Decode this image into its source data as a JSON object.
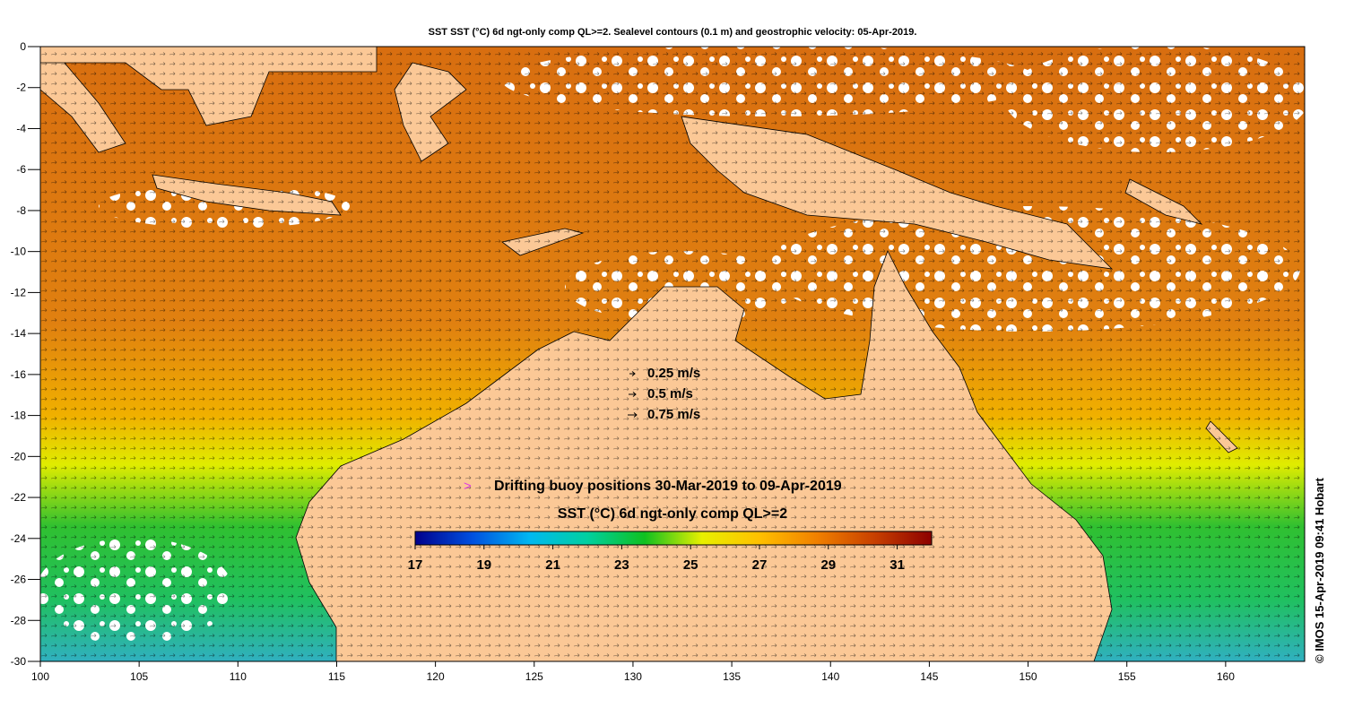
{
  "title": "SST SST (°C) 6d ngt-only comp QL>=2. Sealevel contours (0.1 m) and geostrophic velocity: 05-Apr-2019.",
  "axes": {
    "x_ticks": [
      "100",
      "105",
      "110",
      "115",
      "120",
      "125",
      "130",
      "135",
      "140",
      "145",
      "150",
      "155",
      "160"
    ],
    "x_range": [
      100,
      164
    ],
    "y_ticks": [
      "0",
      "-2",
      "-4",
      "-6",
      "-8",
      "-10",
      "-12",
      "-14",
      "-16",
      "-18",
      "-20",
      "-22",
      "-24",
      "-26",
      "-28",
      "-30"
    ],
    "y_range": [
      -30,
      0
    ]
  },
  "velocity_legend": [
    {
      "label": "0.25 m/s",
      "speed": 0.25
    },
    {
      "label": "0.5 m/s",
      "speed": 0.5
    },
    {
      "label": "0.75 m/s",
      "speed": 0.75
    }
  ],
  "buoy_legend": {
    "symbol": ">",
    "label": "Drifting buoy positions 30-Mar-2019 to 09-Apr-2019",
    "color": "#e040e0"
  },
  "colorbar": {
    "title": "SST (°C) 6d ngt-only comp QL>=2",
    "range": [
      17,
      32
    ],
    "tick_labels": [
      "17",
      "19",
      "21",
      "23",
      "25",
      "27",
      "29",
      "31"
    ],
    "colors": [
      "#00008c",
      "#0050e0",
      "#00b8f0",
      "#00d0a0",
      "#10c020",
      "#e8f000",
      "#ffc000",
      "#f08000",
      "#c84000",
      "#8c0000"
    ]
  },
  "colors": {
    "land": "#fbc896",
    "sea_warm": "#e07810",
    "sea_mid": "#f0b000",
    "sea_cool": "#20c040",
    "cloud": "#ffffff"
  },
  "credit": "© IMOS 15-Apr-2019 09:41 Hobart"
}
